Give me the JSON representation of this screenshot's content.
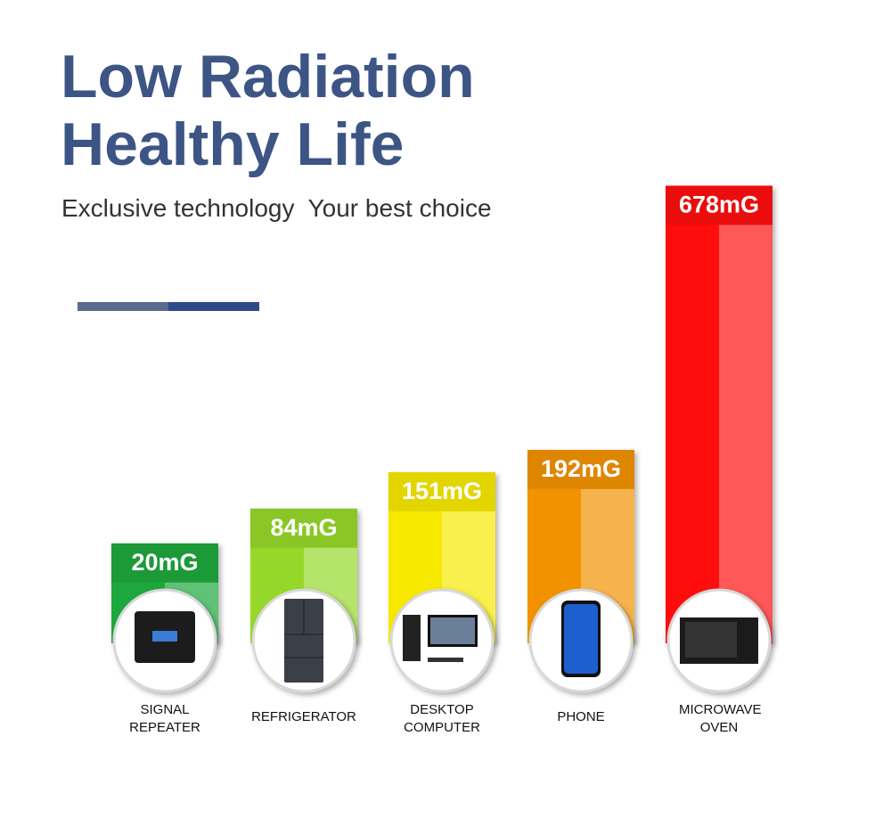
{
  "chart_data": {
    "type": "bar",
    "title": "Low Radiation Healthy Life",
    "subtitle": "Exclusive technology  Your best choice",
    "categories": [
      "SIGNAL REPEATER",
      "REFRIGERATOR",
      "DESKTOP COMPUTER",
      "PHONE",
      "MICROWAVE OVEN"
    ],
    "values": [
      20,
      84,
      151,
      192,
      678
    ],
    "value_labels": [
      "20mG",
      "84mG",
      "151mG",
      "192mG",
      "678mG"
    ],
    "colors": [
      "#1ea83c",
      "#96d82c",
      "#f7e800",
      "#f29200",
      "#ff1010"
    ]
  }
}
